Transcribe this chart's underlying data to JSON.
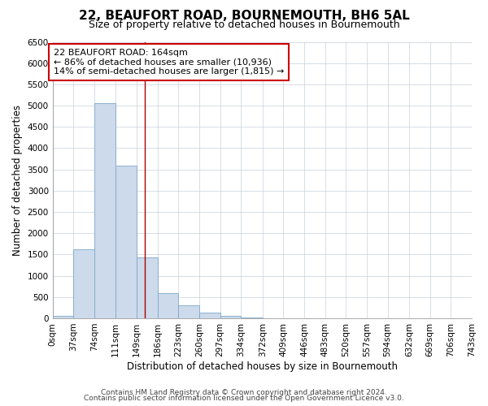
{
  "title": "22, BEAUFORT ROAD, BOURNEMOUTH, BH6 5AL",
  "subtitle": "Size of property relative to detached houses in Bournemouth",
  "xlabel": "Distribution of detached houses by size in Bournemouth",
  "ylabel": "Number of detached properties",
  "footer_lines": [
    "Contains HM Land Registry data © Crown copyright and database right 2024.",
    "Contains public sector information licensed under the Open Government Licence v3.0."
  ],
  "bin_labels": [
    "0sqm",
    "37sqm",
    "74sqm",
    "111sqm",
    "149sqm",
    "186sqm",
    "223sqm",
    "260sqm",
    "297sqm",
    "334sqm",
    "372sqm",
    "409sqm",
    "446sqm",
    "483sqm",
    "520sqm",
    "557sqm",
    "594sqm",
    "632sqm",
    "669sqm",
    "706sqm",
    "743sqm"
  ],
  "bar_values": [
    60,
    1620,
    5060,
    3580,
    1430,
    590,
    300,
    140,
    50,
    10,
    0,
    0,
    0,
    0,
    0,
    0,
    0,
    0,
    0,
    0
  ],
  "bin_edges": [
    0,
    37,
    74,
    111,
    149,
    186,
    223,
    260,
    297,
    334,
    372,
    409,
    446,
    483,
    520,
    557,
    594,
    632,
    669,
    706,
    743
  ],
  "bar_color": "#ccdaeb",
  "bar_edge_color": "#7ea8c9",
  "vline_x": 164,
  "vline_color": "#aa0000",
  "annotation_text": "22 BEAUFORT ROAD: 164sqm\n← 86% of detached houses are smaller (10,936)\n14% of semi-detached houses are larger (1,815) →",
  "annotation_box_color": "#ffffff",
  "annotation_box_edge": "#cc0000",
  "ylim": [
    0,
    6500
  ],
  "yticks": [
    0,
    500,
    1000,
    1500,
    2000,
    2500,
    3000,
    3500,
    4000,
    4500,
    5000,
    5500,
    6000,
    6500
  ],
  "xlim": [
    0,
    743
  ],
  "bg_color": "#ffffff",
  "grid_color": "#c8d0dc",
  "title_fontsize": 11,
  "subtitle_fontsize": 9,
  "axis_label_fontsize": 8.5,
  "tick_fontsize": 7.5,
  "annotation_fontsize": 8,
  "footer_fontsize": 6.5
}
